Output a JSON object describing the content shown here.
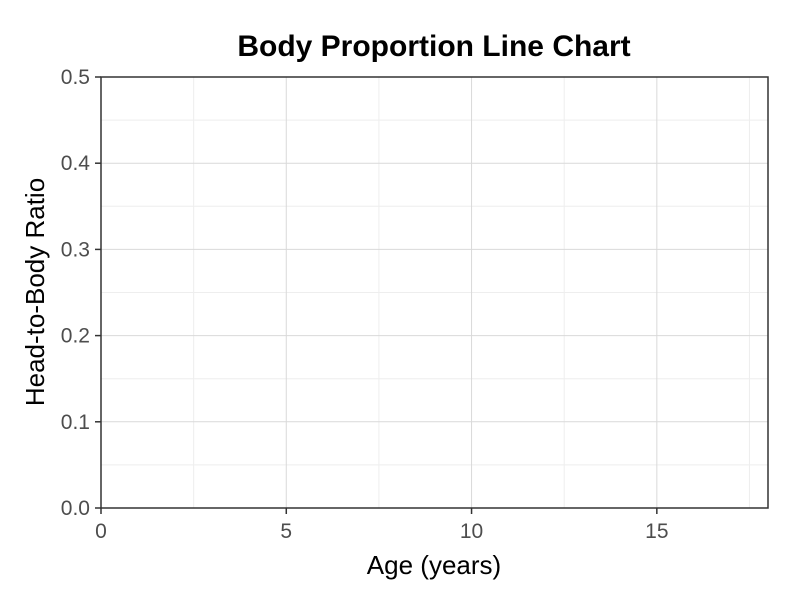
{
  "chart_data": {
    "type": "line",
    "title": "Body Proportion Line Chart",
    "xlabel": "Age (years)",
    "ylabel": "Head-to-Body Ratio",
    "xlim": [
      0,
      18
    ],
    "ylim": [
      0,
      0.5
    ],
    "x_ticks": [
      0,
      5,
      10,
      15
    ],
    "x_tick_labels": [
      "0",
      "5",
      "10",
      "15"
    ],
    "x_minor_ticks": [
      2.5,
      7.5,
      12.5,
      17.5
    ],
    "y_ticks": [
      0,
      0.1,
      0.2,
      0.3,
      0.4,
      0.5
    ],
    "y_tick_labels": [
      "0.0",
      "0.1",
      "0.2",
      "0.3",
      "0.4",
      "0.5"
    ],
    "y_minor_ticks": [
      0.05,
      0.15,
      0.25,
      0.35,
      0.45
    ],
    "grid": true,
    "legend": "none",
    "series": [],
    "colors": {
      "panel_border": "#333333",
      "major_grid": "#d9d9d9",
      "minor_grid": "#eeeeee",
      "tick": "#333333"
    }
  }
}
